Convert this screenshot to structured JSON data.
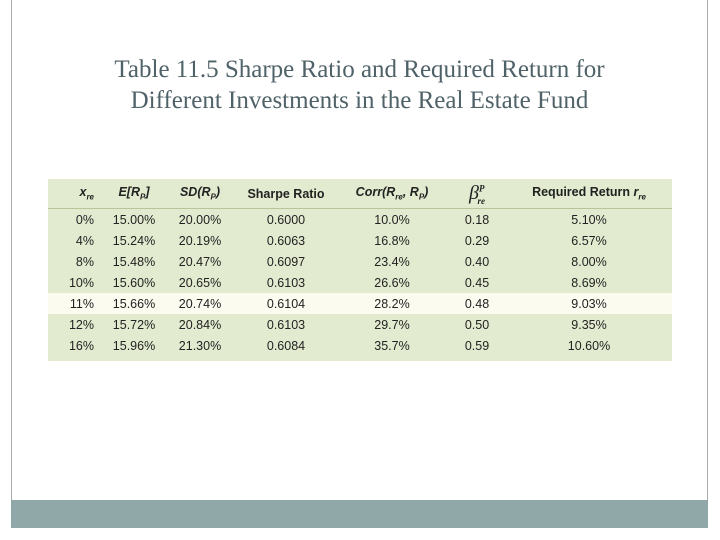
{
  "slide": {
    "title_line1": "Table 11.5  Sharpe Ratio and Required Return for",
    "title_line2": "Different Investments in the Real Estate Fund"
  },
  "table": {
    "headers": {
      "col0": {
        "main": "x",
        "sub": "re"
      },
      "col1": {
        "pre": "E[R",
        "sub": "P",
        "post": "]"
      },
      "col2": {
        "pre": "SD(R",
        "sub": "P",
        "post": ")"
      },
      "col3": "Sharpe Ratio",
      "col4": {
        "pre": "Corr(R",
        "sub1": "re",
        "mid": ", R",
        "sub2": "P",
        "post": ")"
      },
      "col5": {
        "main": "β",
        "sup": "P",
        "sub": "re"
      },
      "col6": {
        "pre": "Required Return ",
        "it": "r",
        "sub": "re"
      }
    },
    "highlight_row_index": 4,
    "rows": [
      [
        "0%",
        "15.00%",
        "20.00%",
        "0.6000",
        "10.0%",
        "0.18",
        "5.10%"
      ],
      [
        "4%",
        "15.24%",
        "20.19%",
        "0.6063",
        "16.8%",
        "0.29",
        "6.57%"
      ],
      [
        "8%",
        "15.48%",
        "20.47%",
        "0.6097",
        "23.4%",
        "0.40",
        "8.00%"
      ],
      [
        "10%",
        "15.60%",
        "20.65%",
        "0.6103",
        "26.6%",
        "0.45",
        "8.69%"
      ],
      [
        "11%",
        "15.66%",
        "20.74%",
        "0.6104",
        "28.2%",
        "0.48",
        "9.03%"
      ],
      [
        "12%",
        "15.72%",
        "20.84%",
        "0.6103",
        "29.7%",
        "0.50",
        "9.35%"
      ],
      [
        "16%",
        "15.96%",
        "21.30%",
        "0.6084",
        "35.7%",
        "0.59",
        "10.60%"
      ]
    ]
  },
  "colors": {
    "table_bg": "#e2ebcf",
    "highlight_row": "#fbfbef",
    "title_text": "#4f6268",
    "bottom_bar": "#91a8a9"
  }
}
